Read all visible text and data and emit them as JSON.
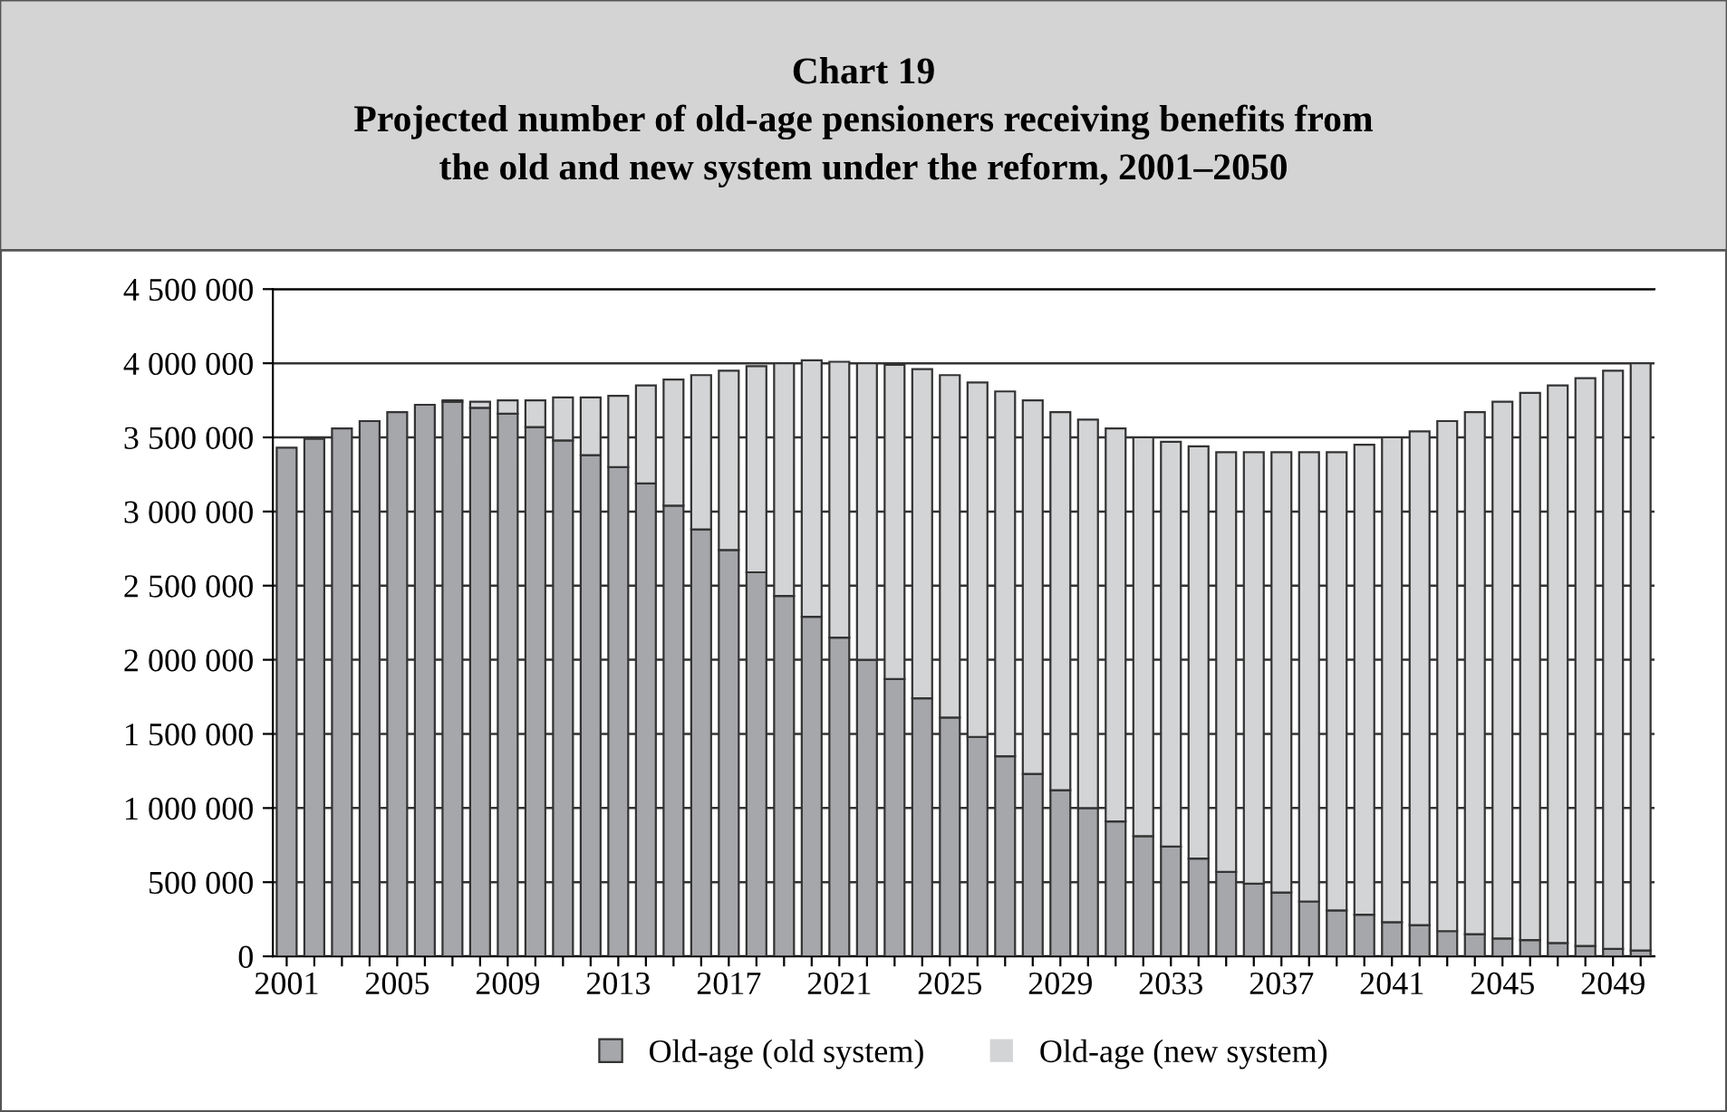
{
  "chart_data": {
    "type": "bar",
    "stacked": true,
    "title": "Chart 19\nProjected number of old-age pensioners receiving benefits from\nthe old and new system under the reform, 2001–2050",
    "categories": [
      "2001",
      null,
      null,
      null,
      "2005",
      null,
      null,
      null,
      "2009",
      null,
      null,
      null,
      "2013",
      null,
      null,
      null,
      "2017",
      null,
      null,
      null,
      "2021",
      null,
      null,
      null,
      "2025",
      null,
      null,
      null,
      "2029",
      null,
      null,
      null,
      "2033",
      null,
      null,
      null,
      "2037",
      null,
      null,
      null,
      "2041",
      null,
      null,
      null,
      "2045",
      null,
      null,
      null,
      "2049",
      null
    ],
    "series": [
      {
        "name": "Old-age (old system)",
        "color": "#a6a7ab",
        "values": [
          3430000,
          3490000,
          3560000,
          3610000,
          3670000,
          3720000,
          3740000,
          3700000,
          3660000,
          3570000,
          3480000,
          3380000,
          3300000,
          3190000,
          3040000,
          2880000,
          2740000,
          2590000,
          2430000,
          2290000,
          2150000,
          2000000,
          1870000,
          1740000,
          1610000,
          1480000,
          1350000,
          1230000,
          1120000,
          1000000,
          910000,
          810000,
          740000,
          660000,
          570000,
          490000,
          430000,
          370000,
          310000,
          280000,
          230000,
          210000,
          170000,
          150000,
          120000,
          110000,
          90000,
          70000,
          50000,
          40000
        ]
      },
      {
        "name": "Old-age (new system)",
        "color": "#d3d4d6",
        "values": [
          0,
          0,
          0,
          0,
          0,
          0,
          10000,
          40000,
          90000,
          180000,
          290000,
          390000,
          480000,
          660000,
          850000,
          1040000,
          1210000,
          1390000,
          1570000,
          1730000,
          1860000,
          2000000,
          2120000,
          2220000,
          2310000,
          2390000,
          2460000,
          2520000,
          2550000,
          2620000,
          2650000,
          2690000,
          2730000,
          2780000,
          2830000,
          2910000,
          2970000,
          3030000,
          3090000,
          3170000,
          3270000,
          3330000,
          3440000,
          3520000,
          3620000,
          3690000,
          3760000,
          3830000,
          3900000,
          3960000
        ]
      }
    ],
    "ylim": [
      0,
      4500000
    ],
    "yticks": [
      {
        "value": 0,
        "label": "0"
      },
      {
        "value": 500000,
        "label": "500 000"
      },
      {
        "value": 1000000,
        "label": "1 000 000"
      },
      {
        "value": 1500000,
        "label": "1 500 000"
      },
      {
        "value": 2000000,
        "label": "2 000 000"
      },
      {
        "value": 2500000,
        "label": "2 500 000"
      },
      {
        "value": 3000000,
        "label": "3 000 000"
      },
      {
        "value": 3500000,
        "label": "3 500 000"
      },
      {
        "value": 4000000,
        "label": "4 000 000"
      },
      {
        "value": 4500000,
        "label": "4 500 000"
      }
    ],
    "grid": "y",
    "legend": "bottom"
  }
}
